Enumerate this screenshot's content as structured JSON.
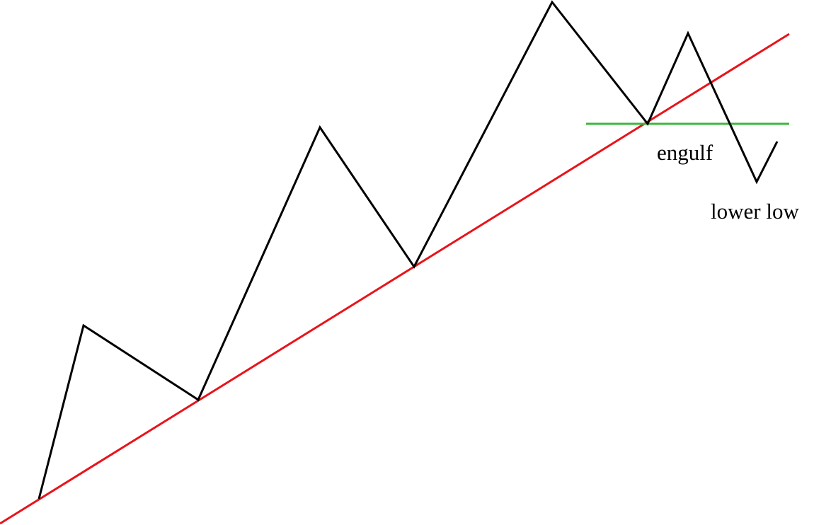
{
  "labels": {
    "engulf": "engulf",
    "lower_low": "lower low"
  }
}
